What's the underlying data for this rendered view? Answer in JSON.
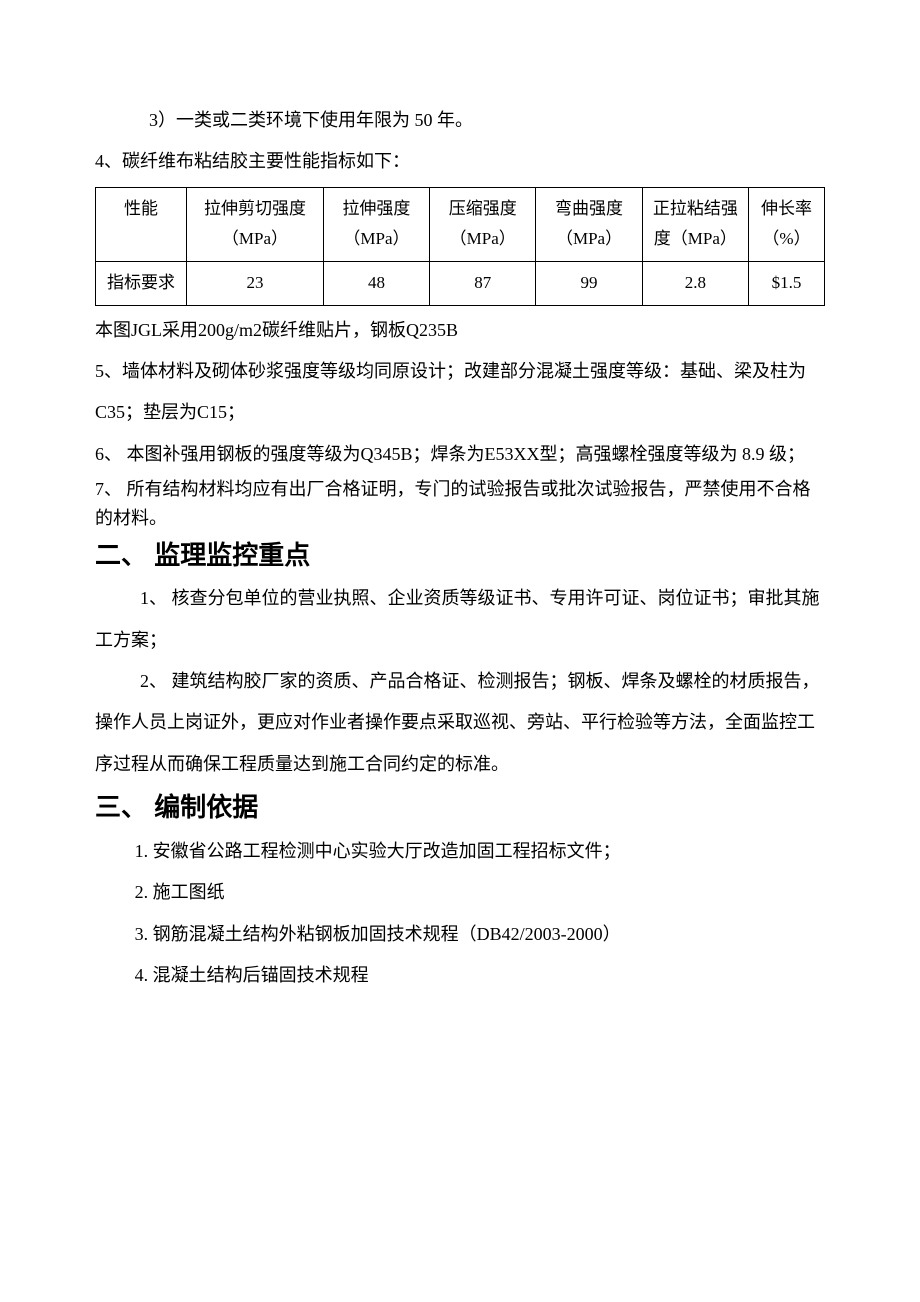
{
  "p1": "3）一类或二类环境下使用年限为 50 年。",
  "p2": "4、碳纤维布粘结胶主要性能指标如下：",
  "table": {
    "header": [
      "性能",
      "拉伸剪切强度（MPa）",
      "拉伸强度（MPa）",
      "压缩强度（MPa）",
      "弯曲强度（MPa）",
      "正拉粘结强度（MPa）",
      "伸长率（%）"
    ],
    "row": [
      "指标要求",
      "23",
      "48",
      "87",
      "99",
      "2.8",
      "$1.5"
    ]
  },
  "p3": "本图JGL采用200g/m2碳纤维贴片，钢板Q235B",
  "p4": "5、墙体材料及砌体砂浆强度等级均同原设计；改建部分混凝土强度等级：基础、梁及柱为C35；垫层为C15；",
  "p5": "6、 本图补强用钢板的强度等级为Q345B；焊条为E53XX型；高强螺栓强度等级为 8.9 级；",
  "p6": "7、 所有结构材料均应有出厂合格证明，专门的试验报告或批次试验报告，严禁使用不合格的材料。",
  "h1": "二、 监理监控重点",
  "p7": "1、 核查分包单位的营业执照、企业资质等级证书、专用许可证、岗位证书；审批其施工方案；",
  "p8": "2、 建筑结构胶厂家的资质、产品合格证、检测报告；钢板、焊条及螺栓的材质报告，操作人员上岗证外，更应对作业者操作要点采取巡视、旁站、平行检验等方法，全面监控工序过程从而确保工程质量达到施工合同约定的标准。",
  "h2": "三、 编制依据",
  "p9": "1. 安徽省公路工程检测中心实验大厅改造加固工程招标文件；",
  "p10": "2.  施工图纸",
  "p11": "3.  钢筋混凝土结构外粘钢板加固技术规程（DB42/2003-2000）",
  "p12": "4.  混凝土结构后锚固技术规程"
}
